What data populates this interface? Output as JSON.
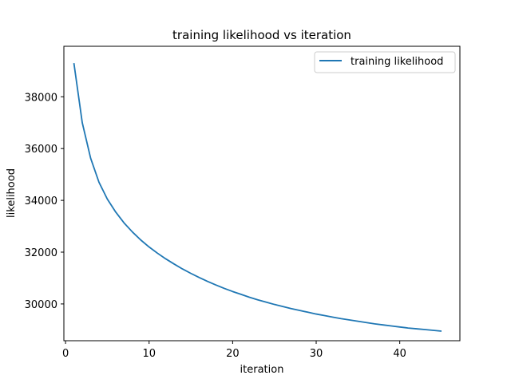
{
  "chart_data": {
    "type": "line",
    "title": "training likelihood vs iteration",
    "xlabel": "iteration",
    "ylabel": "likelihood",
    "xlim": [
      -0.2,
      47.2
    ],
    "ylim": [
      28580,
      39950
    ],
    "xticks": [
      0,
      10,
      20,
      30,
      40
    ],
    "yticks": [
      30000,
      32000,
      34000,
      36000,
      38000
    ],
    "grid": false,
    "legend": "top-right",
    "colors": {
      "series": "#1f77b4"
    },
    "series": [
      {
        "name": "training likelihood",
        "x": [
          1,
          2,
          3,
          4,
          5,
          6,
          7,
          8,
          9,
          10,
          11,
          12,
          13,
          14,
          15,
          16,
          17,
          18,
          19,
          20,
          21,
          22,
          23,
          24,
          25,
          26,
          27,
          28,
          29,
          30,
          31,
          32,
          33,
          34,
          35,
          36,
          37,
          38,
          39,
          40,
          41,
          42,
          43,
          44,
          45
        ],
        "values": [
          39300,
          37000,
          35630,
          34700,
          34050,
          33550,
          33130,
          32780,
          32470,
          32200,
          31960,
          31740,
          31540,
          31350,
          31180,
          31020,
          30870,
          30730,
          30600,
          30480,
          30370,
          30260,
          30160,
          30070,
          29980,
          29900,
          29820,
          29750,
          29680,
          29610,
          29550,
          29490,
          29430,
          29380,
          29330,
          29280,
          29230,
          29190,
          29150,
          29110,
          29070,
          29040,
          29010,
          28980,
          28950
        ]
      }
    ]
  }
}
